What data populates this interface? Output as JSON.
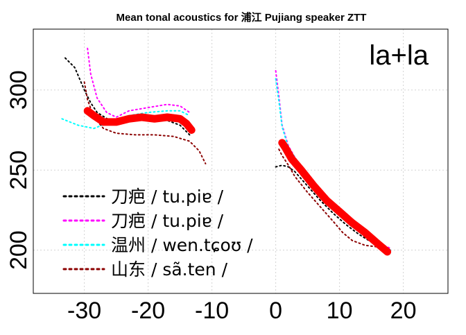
{
  "chart_data": {
    "type": "line",
    "title": "Mean tonal acoustics for 浦江 Pujiang speaker ZTT",
    "panel_label": "la+la",
    "xlabel": "",
    "ylabel": "",
    "xlim": [
      -38,
      27
    ],
    "ylim": [
      173,
      338
    ],
    "x_ticks": [
      {
        "value": -30,
        "label": "-30"
      },
      {
        "value": -20,
        "label": "-20"
      },
      {
        "value": -10,
        "label": "-10"
      },
      {
        "value": 0,
        "label": "0"
      },
      {
        "value": 10,
        "label": "10"
      },
      {
        "value": 20,
        "label": "20"
      }
    ],
    "y_ticks": [
      {
        "value": 200,
        "label": "200"
      },
      {
        "value": 250,
        "label": "250"
      },
      {
        "value": 300,
        "label": "300"
      }
    ],
    "grid": true,
    "legend_position": "bottom-left",
    "series": [
      {
        "name": "刀疤 / tu.piɐ /",
        "color": "#000000",
        "style": "dotted",
        "segments": [
          [
            [
              -33.0,
              320
            ],
            [
              -31.5,
              314
            ],
            [
              -30.0,
              300
            ],
            [
              -29.0,
              292
            ],
            [
              -28.0,
              286
            ],
            [
              -26.0,
              281
            ],
            [
              -23.0,
              282
            ],
            [
              -20.0,
              282
            ],
            [
              -17.0,
              281
            ],
            [
              -15.0,
              278
            ],
            [
              -13.5,
              272
            ]
          ],
          [
            [
              0.0,
              252
            ],
            [
              1.0,
              253
            ],
            [
              2.0,
              252
            ],
            [
              3.0,
              249
            ],
            [
              5.0,
              240
            ],
            [
              7.0,
              231
            ],
            [
              9.0,
              223
            ],
            [
              11.0,
              216
            ],
            [
              13.0,
              210
            ],
            [
              15.0,
              205
            ],
            [
              17.0,
              200
            ],
            [
              18.0,
              197
            ]
          ]
        ]
      },
      {
        "name": "刀疤 / tu.piɐ /",
        "color": "#ff00ff",
        "style": "dotted",
        "segments": [
          [
            [
              -29.5,
              326
            ],
            [
              -29.0,
              310
            ],
            [
              -28.0,
              295
            ],
            [
              -26.5,
              286
            ],
            [
              -25.0,
              283
            ],
            [
              -23.0,
              287
            ],
            [
              -20.0,
              289
            ],
            [
              -17.0,
              291
            ],
            [
              -15.0,
              290
            ],
            [
              -13.5,
              286
            ]
          ],
          [
            [
              0.0,
              312
            ],
            [
              0.5,
              296
            ],
            [
              1.0,
              278
            ],
            [
              2.0,
              265
            ],
            [
              3.0,
              258
            ],
            [
              5.0,
              246
            ],
            [
              7.0,
              237
            ],
            [
              9.0,
              228
            ],
            [
              11.0,
              220
            ],
            [
              13.0,
              214
            ],
            [
              15.0,
              208
            ],
            [
              17.0,
              203
            ],
            [
              18.0,
              201
            ]
          ]
        ]
      },
      {
        "name": "温州 / wen.tɕoʊ /",
        "color": "#00ffff",
        "style": "dotted",
        "segments": [
          [
            [
              -33.5,
              282
            ],
            [
              -31.0,
              278
            ],
            [
              -28.5,
              276
            ],
            [
              -26.0,
              280
            ],
            [
              -23.0,
              284
            ],
            [
              -20.0,
              286
            ],
            [
              -17.0,
              287
            ],
            [
              -15.0,
              287
            ],
            [
              -13.5,
              284
            ]
          ],
          [
            [
              0.0,
              307
            ],
            [
              0.5,
              293
            ],
            [
              1.0,
              277
            ],
            [
              2.0,
              264
            ],
            [
              3.0,
              258
            ],
            [
              5.0,
              245
            ],
            [
              7.0,
              235
            ],
            [
              9.0,
              226
            ],
            [
              11.0,
              218
            ],
            [
              13.0,
              212
            ],
            [
              15.0,
              206
            ],
            [
              17.0,
              202
            ],
            [
              18.0,
              200
            ]
          ]
        ]
      },
      {
        "name": "山东 / sã.ten /",
        "color": "#8b0000",
        "style": "dotted",
        "segments": [
          [
            [
              -30.0,
              305
            ],
            [
              -29.5,
              294
            ],
            [
              -28.5,
              283
            ],
            [
              -27.0,
              276
            ],
            [
              -25.0,
              273
            ],
            [
              -22.0,
              272
            ],
            [
              -19.0,
              272
            ],
            [
              -16.0,
              271
            ],
            [
              -13.5,
              268
            ],
            [
              -12.0,
              262
            ],
            [
              -11.0,
              254
            ]
          ],
          [
            [
              0.5,
              263
            ],
            [
              1.0,
              259
            ],
            [
              2.0,
              253
            ],
            [
              3.0,
              246
            ],
            [
              5.0,
              236
            ],
            [
              7.0,
              227
            ],
            [
              9.0,
              218
            ],
            [
              10.5,
              211
            ],
            [
              12.0,
              206
            ],
            [
              14.0,
              203
            ],
            [
              16.0,
              202
            ],
            [
              18.0,
              200
            ]
          ]
        ]
      },
      {
        "name": "",
        "color": "#ff0000",
        "style": "thick",
        "segments": [
          [
            [
              -29.5,
              287
            ],
            [
              -28.5,
              284
            ],
            [
              -27.0,
              280
            ],
            [
              -25.0,
              280
            ],
            [
              -23.0,
              282
            ],
            [
              -21.0,
              283
            ],
            [
              -19.0,
              282
            ],
            [
              -17.0,
              283
            ],
            [
              -15.0,
              282
            ],
            [
              -14.0,
              279
            ],
            [
              -13.2,
              275
            ]
          ],
          [
            [
              1.0,
              267
            ],
            [
              1.5,
              264
            ],
            [
              2.5,
              257
            ],
            [
              4.0,
              250
            ],
            [
              6.0,
              240
            ],
            [
              8.0,
              231
            ],
            [
              10.0,
              224
            ],
            [
              12.0,
              217
            ],
            [
              14.0,
              211
            ],
            [
              16.0,
              204
            ],
            [
              17.5,
              199
            ]
          ]
        ]
      }
    ],
    "legend": [
      {
        "label": "刀疤 / tu.piɐ /",
        "color": "#000000"
      },
      {
        "label": "刀疤 / tu.piɐ /",
        "color": "#ff00ff"
      },
      {
        "label": "温州 / wen.tɕoʊ /",
        "color": "#00ffff"
      },
      {
        "label": "山东 / sã.ten /",
        "color": "#8b0000"
      }
    ]
  }
}
